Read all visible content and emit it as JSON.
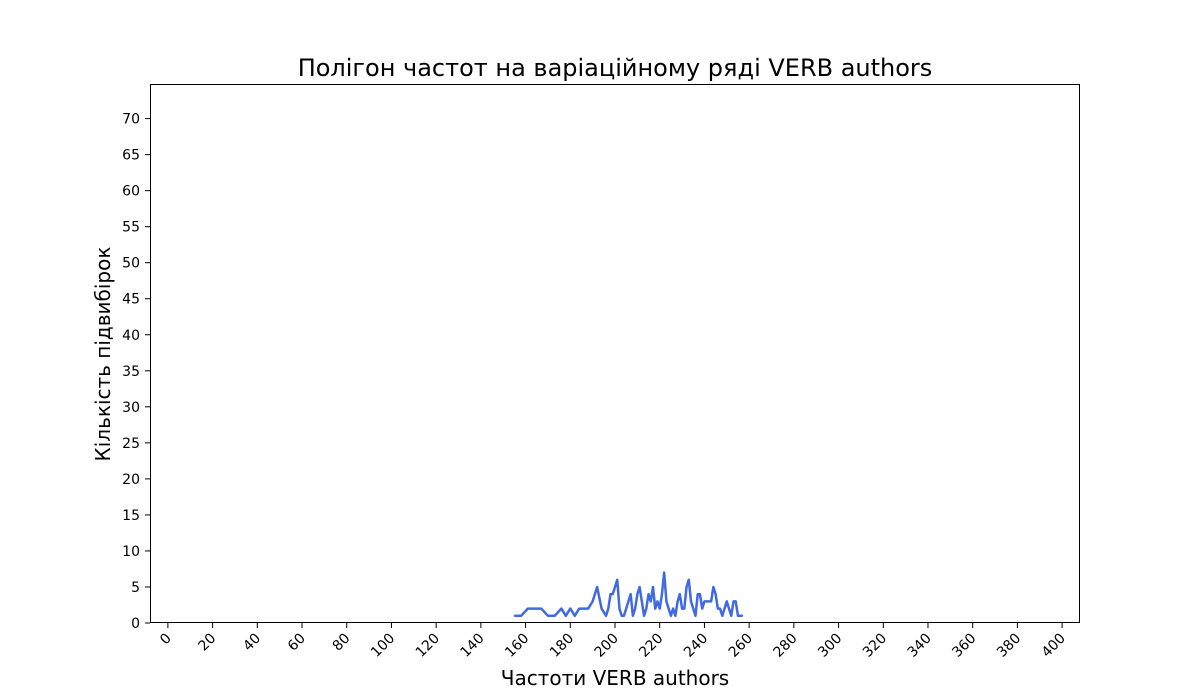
{
  "chart_data": {
    "type": "line",
    "title": "Полігон частот на варіаційному ряді VERB authors",
    "xlabel": "Частоти VERB authors",
    "ylabel": "Кількість підвибірок",
    "xlim": [
      -8,
      408
    ],
    "ylim": [
      0,
      74.8
    ],
    "x_ticks": [
      0,
      20,
      40,
      60,
      80,
      100,
      120,
      140,
      160,
      180,
      200,
      220,
      240,
      260,
      280,
      300,
      320,
      340,
      360,
      380,
      400
    ],
    "y_ticks": [
      0,
      5,
      10,
      15,
      20,
      25,
      30,
      35,
      40,
      45,
      50,
      55,
      60,
      65,
      70
    ],
    "x_tick_rotation": 45,
    "grid": false,
    "series": [
      {
        "color": "#4169e1",
        "x": [
          155,
          158,
          161,
          164,
          167,
          170,
          173,
          176,
          178,
          180,
          182,
          184,
          186,
          188,
          190,
          192,
          194,
          196,
          197,
          198,
          199,
          200,
          201,
          202,
          203,
          204,
          205,
          206,
          207,
          208,
          209,
          210,
          211,
          212,
          213,
          214,
          215,
          216,
          217,
          218,
          219,
          220,
          221,
          222,
          223,
          224,
          225,
          226,
          227,
          228,
          229,
          230,
          231,
          232,
          233,
          234,
          235,
          236,
          237,
          238,
          239,
          240,
          241,
          242,
          243,
          244,
          245,
          246,
          247,
          248,
          249,
          250,
          251,
          252,
          253,
          254,
          255,
          256,
          257
        ],
        "y": [
          1,
          1,
          2,
          2,
          2,
          1,
          1,
          2,
          1,
          2,
          1,
          2,
          2,
          2,
          3,
          5,
          2,
          1,
          2,
          4,
          4,
          5,
          6,
          2,
          1,
          1,
          2,
          3,
          4,
          1,
          2,
          4,
          5,
          3,
          1,
          2,
          4,
          3,
          5,
          2,
          3,
          2,
          4,
          7,
          3,
          2,
          1,
          2,
          1,
          3,
          4,
          2,
          2,
          5,
          6,
          3,
          2,
          1,
          4,
          4,
          2,
          3,
          3,
          3,
          3,
          5,
          4,
          2,
          2,
          1,
          2,
          3,
          2,
          1,
          3,
          3,
          1,
          1,
          1
        ]
      }
    ]
  }
}
